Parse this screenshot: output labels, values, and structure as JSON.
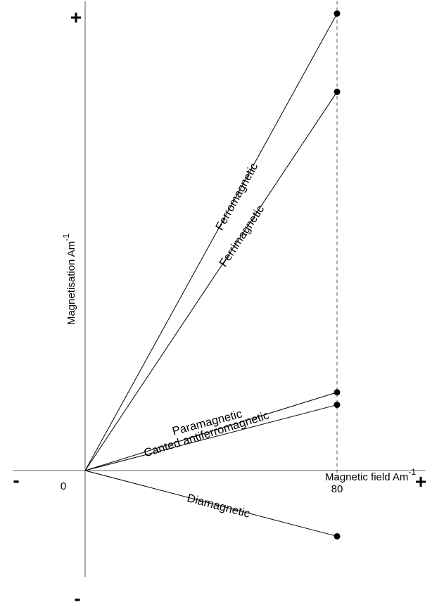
{
  "chart_data": {
    "type": "line",
    "title": "",
    "xlabel": "Magnetic field Am",
    "xlabel_sup": "-1",
    "ylabel": "Magnetisation Am",
    "ylabel_sup": "-1",
    "origin_label": "0",
    "x_tick_label": "80",
    "x_tick_value": 80,
    "x_positive_sign": "+",
    "x_negative_sign": "-",
    "y_positive_sign": "+",
    "y_negative_sign": "-",
    "reference_line": {
      "x": 80,
      "style": "dashed"
    },
    "xlim": [
      -23,
      108
    ],
    "ylim": [
      -34,
      150
    ],
    "grid": false,
    "series": [
      {
        "name": "Ferromagnetic",
        "x": [
          0,
          80
        ],
        "y": [
          0,
          146
        ]
      },
      {
        "name": "Ferrimagnetic",
        "x": [
          0,
          80
        ],
        "y": [
          0,
          121
        ]
      },
      {
        "name": "Canted antiferromagnetic",
        "x": [
          0,
          80
        ],
        "y": [
          0,
          25
        ]
      },
      {
        "name": "Paramagnetic",
        "x": [
          0,
          80
        ],
        "y": [
          0,
          21
        ]
      },
      {
        "name": "Diamagnetic",
        "x": [
          0,
          80
        ],
        "y": [
          0,
          -21
        ]
      }
    ]
  }
}
